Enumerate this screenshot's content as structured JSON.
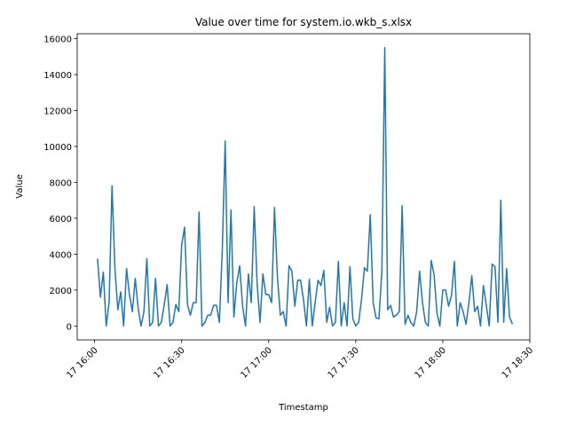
{
  "chart_data": {
    "type": "line",
    "title": "Value over time for system.io.wkb_s.xlsx",
    "xlabel": "Timestamp",
    "ylabel": "Value",
    "x": [
      "17 16:01",
      "17 16:02",
      "17 16:03",
      "17 16:04",
      "17 16:05",
      "17 16:06",
      "17 16:07",
      "17 16:08",
      "17 16:09",
      "17 16:10",
      "17 16:11",
      "17 16:12",
      "17 16:13",
      "17 16:14",
      "17 16:15",
      "17 16:16",
      "17 16:17",
      "17 16:18",
      "17 16:19",
      "17 16:20",
      "17 16:21",
      "17 16:22",
      "17 16:23",
      "17 16:24",
      "17 16:25",
      "17 16:26",
      "17 16:27",
      "17 16:28",
      "17 16:29",
      "17 16:30",
      "17 16:31",
      "17 16:32",
      "17 16:33",
      "17 16:34",
      "17 16:35",
      "17 16:36",
      "17 16:37",
      "17 16:38",
      "17 16:39",
      "17 16:40",
      "17 16:41",
      "17 16:42",
      "17 16:43",
      "17 16:44",
      "17 16:45",
      "17 16:46",
      "17 16:47",
      "17 16:48",
      "17 16:49",
      "17 16:50",
      "17 16:51",
      "17 16:52",
      "17 16:53",
      "17 16:54",
      "17 16:55",
      "17 16:56",
      "17 16:57",
      "17 16:58",
      "17 16:59",
      "17 17:00",
      "17 17:01",
      "17 17:02",
      "17 17:03",
      "17 17:04",
      "17 17:05",
      "17 17:06",
      "17 17:07",
      "17 17:08",
      "17 17:09",
      "17 17:10",
      "17 17:11",
      "17 17:12",
      "17 17:13",
      "17 17:14",
      "17 17:15",
      "17 17:16",
      "17 17:17",
      "17 17:18",
      "17 17:19",
      "17 17:20",
      "17 17:21",
      "17 17:22",
      "17 17:23",
      "17 17:24",
      "17 17:25",
      "17 17:26",
      "17 17:27",
      "17 17:28",
      "17 17:29",
      "17 17:30",
      "17 17:31",
      "17 17:32",
      "17 17:33",
      "17 17:34",
      "17 17:35",
      "17 17:36",
      "17 17:37",
      "17 17:38",
      "17 17:39",
      "17 17:40",
      "17 17:41",
      "17 17:42",
      "17 17:43",
      "17 17:44",
      "17 17:45",
      "17 17:46",
      "17 17:47",
      "17 17:48",
      "17 17:49",
      "17 17:50",
      "17 17:51",
      "17 17:52",
      "17 17:53",
      "17 17:54",
      "17 17:55",
      "17 17:56",
      "17 17:57",
      "17 17:58",
      "17 17:59",
      "17 18:00",
      "17 18:01",
      "17 18:02",
      "17 18:03",
      "17 18:04",
      "17 18:05",
      "17 18:06",
      "17 18:07",
      "17 18:08",
      "17 18:09",
      "17 18:10",
      "17 18:11",
      "17 18:12",
      "17 18:13",
      "17 18:14",
      "17 18:15",
      "17 18:16",
      "17 18:17",
      "17 18:18",
      "17 18:19",
      "17 18:20",
      "17 18:21",
      "17 18:22",
      "17 18:23",
      "17 18:24"
    ],
    "series": [
      {
        "color": "#1f77b4",
        "values": [
          3750,
          1600,
          3000,
          0,
          1300,
          7800,
          3200,
          900,
          1900,
          0,
          3200,
          1750,
          800,
          2650,
          1000,
          0,
          800,
          3750,
          0,
          200,
          2650,
          0,
          200,
          1200,
          2300,
          0,
          200,
          1200,
          800,
          4500,
          5500,
          1200,
          600,
          1300,
          1300,
          6350,
          0,
          200,
          600,
          600,
          1150,
          1150,
          200,
          4200,
          10300,
          1300,
          6450,
          500,
          2400,
          3350,
          1100,
          0,
          2900,
          1300,
          6650,
          2400,
          200,
          2900,
          1750,
          1750,
          1300,
          6600,
          2750,
          600,
          800,
          0,
          3350,
          3050,
          1100,
          2550,
          2550,
          1450,
          0,
          2600,
          0,
          1300,
          2550,
          2250,
          3100,
          200,
          1050,
          0,
          200,
          3600,
          0,
          1300,
          0,
          3300,
          400,
          0,
          200,
          1500,
          3250,
          3050,
          6200,
          1300,
          450,
          400,
          3050,
          15500,
          900,
          1150,
          500,
          600,
          800,
          6700,
          100,
          600,
          200,
          0,
          800,
          3050,
          1300,
          200,
          0,
          3650,
          2850,
          700,
          0,
          2000,
          2000,
          1100,
          1700,
          3600,
          0,
          1300,
          800,
          100,
          1300,
          2800,
          800,
          1100,
          0,
          2250,
          1150,
          0,
          3450,
          3300,
          200,
          7000,
          200,
          3200,
          500,
          100
        ]
      }
    ],
    "xlim": [
      "17 15:54",
      "17 18:30"
    ],
    "xticks": [
      "17 16:00",
      "17 16:30",
      "17 17:00",
      "17 17:30",
      "17 18:00",
      "17 18:30"
    ],
    "ylim": [
      -775,
      16275
    ],
    "yticks": [
      0,
      2000,
      4000,
      6000,
      8000,
      10000,
      12000,
      14000,
      16000
    ]
  }
}
